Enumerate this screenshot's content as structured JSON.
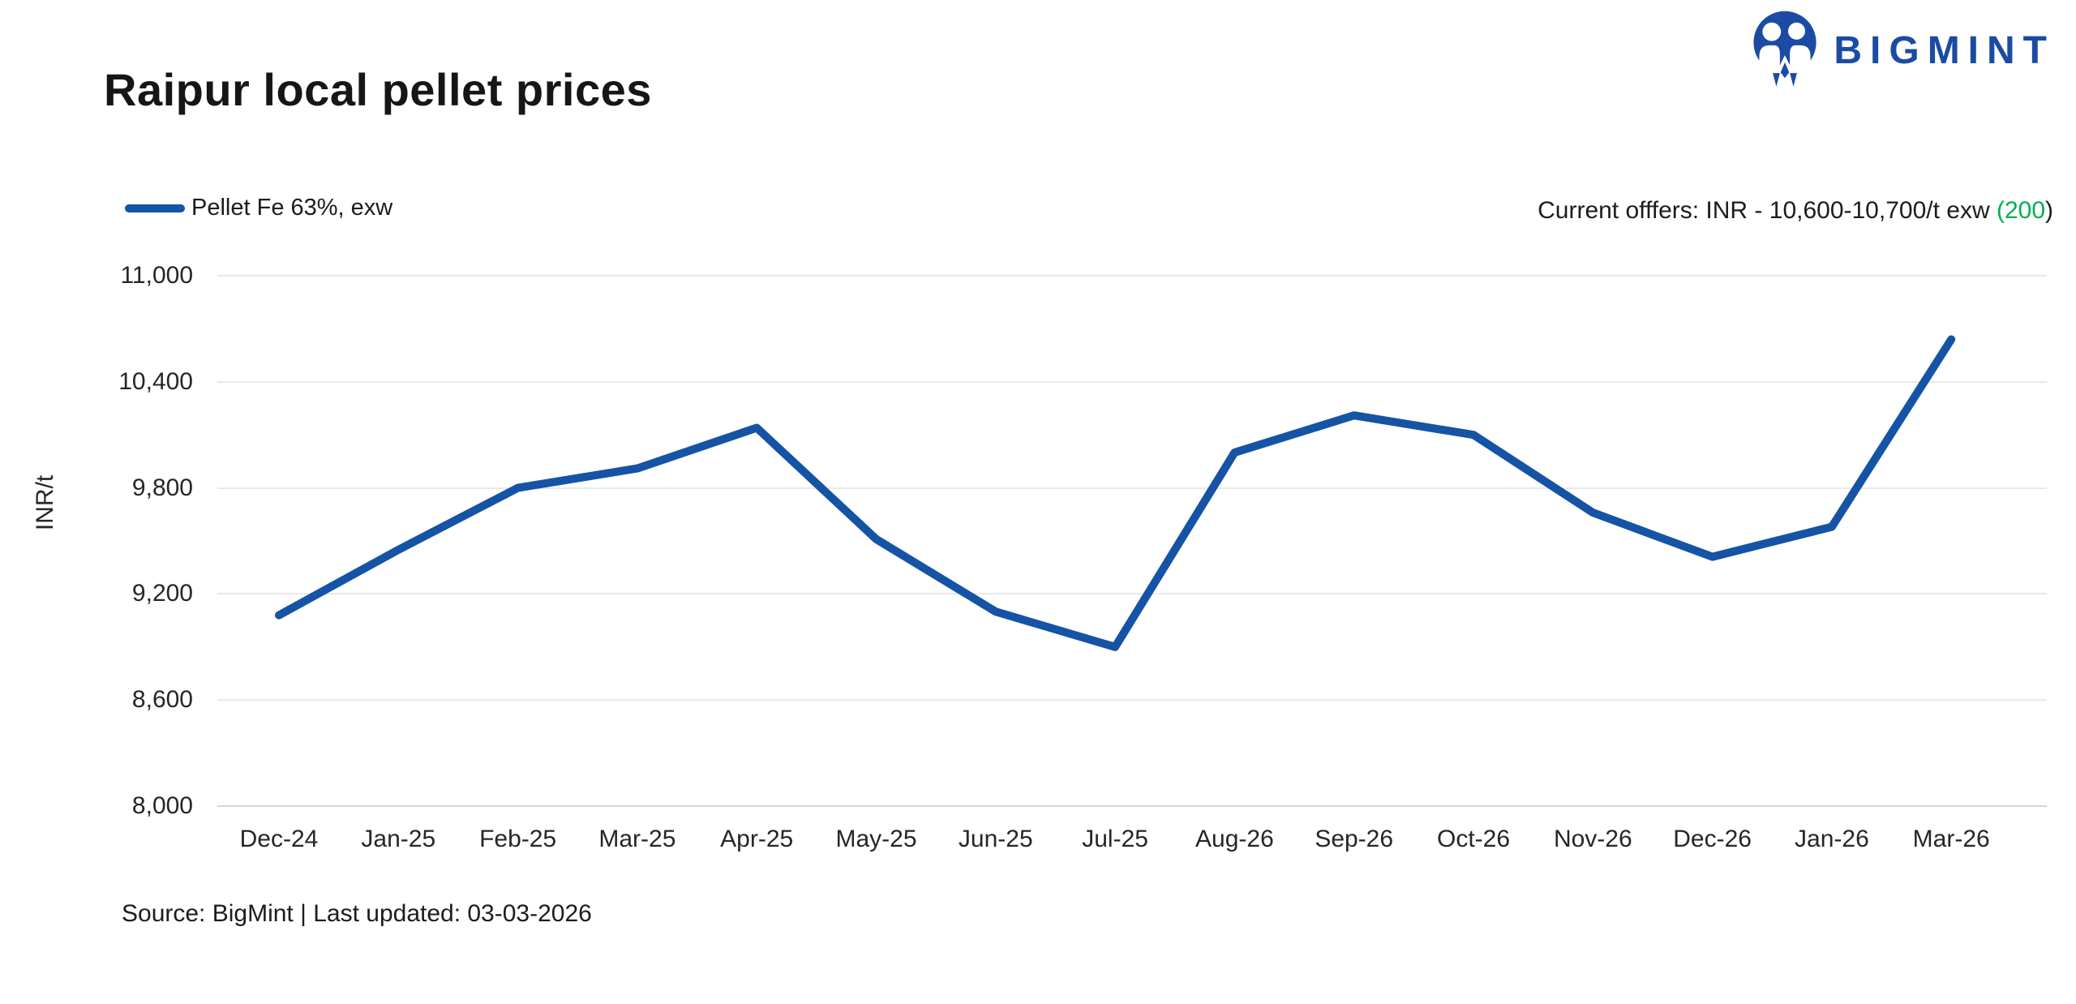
{
  "header": {
    "title": "Raipur local pellet prices",
    "logo_text": "BIGMINT"
  },
  "legend": {
    "label": "Pellet Fe 63%, exw"
  },
  "current_offers": {
    "prefix": "Current offfers: INR - 10,600-10,700/t exw ",
    "highlight": "(200",
    "suffix": ")"
  },
  "footer": {
    "source": "Source: BigMint | Last updated: 03-03-2026"
  },
  "colors": {
    "line": "#1553A5",
    "green": "#00B050",
    "logo_blue": "#1B4BA3",
    "grid": "#E9E9E9",
    "axis": "#D5D5D5"
  },
  "chart_data": {
    "type": "line",
    "title": "Raipur local pellet prices",
    "xlabel": "",
    "ylabel": "INR/t",
    "ylim": [
      8000,
      11000
    ],
    "y_ticks": [
      11000,
      10400,
      9800,
      9200,
      8600,
      8000
    ],
    "y_tick_labels": [
      "11,000",
      "10,400",
      "9,800",
      "9,200",
      "8,600",
      "8,000"
    ],
    "grid": "horizontal",
    "legend_position": "top-left",
    "categories": [
      "Dec-24",
      "Jan-25",
      "Feb-25",
      "Mar-25",
      "Apr-25",
      "May-25",
      "Jun-25",
      "Jul-25",
      "Aug-26",
      "Sep-26",
      "Oct-26",
      "Nov-26",
      "Dec-26",
      "Jan-26",
      "Mar-26"
    ],
    "series": [
      {
        "name": "Pellet Fe 63%, exw",
        "color": "#1553A5",
        "values": [
          9080,
          9450,
          9800,
          9910,
          10140,
          9510,
          9100,
          8900,
          10000,
          10210,
          10100,
          9660,
          9410,
          9580,
          10640
        ]
      }
    ]
  }
}
